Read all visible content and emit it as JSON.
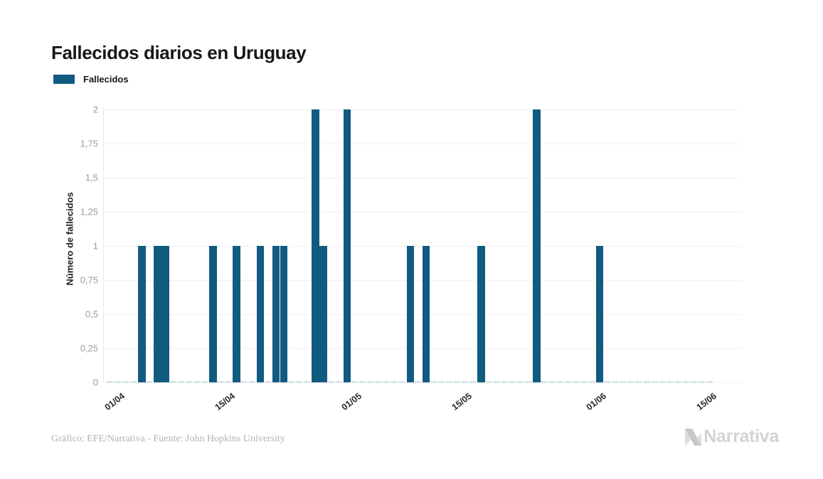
{
  "page": {
    "title": "Fallecidos diarios en Uruguay"
  },
  "legend": {
    "label": "Fallecidos"
  },
  "colors": {
    "bar": "#115b80",
    "title_text": "#17181a",
    "x_tick_text": "#26282b",
    "y_tick_text": "#9a9a9a",
    "gridline": "#f1f1f1",
    "axis_line": "#e8e8e8",
    "zero_day_dash": "#d9e4ea",
    "footer_text": "#b2b2b2",
    "logo_gray": "#d3d3d4"
  },
  "footer": {
    "credit": "Gráfico: EFE/Narrativa - Fuente: John Hopkins University",
    "brand": "Narrativa"
  },
  "chart_data": {
    "type": "bar",
    "title": "Fallecidos diarios en Uruguay",
    "series_name": "Fallecidos",
    "xlabel": "",
    "ylabel": "Número de fallecidos",
    "ylim": [
      0,
      2
    ],
    "grid": true,
    "legend_position": "top-left",
    "y_ticks": [
      {
        "value": 0,
        "label": "0"
      },
      {
        "value": 0.25,
        "label": "0,25"
      },
      {
        "value": 0.5,
        "label": "0,5"
      },
      {
        "value": 0.75,
        "label": "0,75"
      },
      {
        "value": 1,
        "label": "1"
      },
      {
        "value": 1.25,
        "label": "1,25"
      },
      {
        "value": 1.5,
        "label": "1,5"
      },
      {
        "value": 1.75,
        "label": "1,75"
      },
      {
        "value": 2,
        "label": "2"
      }
    ],
    "x_ticks": [
      {
        "day": 0,
        "label": "01/04"
      },
      {
        "day": 14,
        "label": "15/04"
      },
      {
        "day": 30,
        "label": "01/05"
      },
      {
        "day": 44,
        "label": "15/05"
      },
      {
        "day": 61,
        "label": "01/06"
      },
      {
        "day": 75,
        "label": "15/06"
      }
    ],
    "x_domain": {
      "start_label": "01/04",
      "end_label": "16/06",
      "days_total": 77
    },
    "unlisted_days_value": 0,
    "bars": [
      {
        "day": 4,
        "date": "05/04",
        "value": 1
      },
      {
        "day": 6,
        "date": "07/04",
        "value": 1
      },
      {
        "day": 7,
        "date": "08/04",
        "value": 1
      },
      {
        "day": 13,
        "date": "14/04",
        "value": 1
      },
      {
        "day": 16,
        "date": "17/04",
        "value": 1
      },
      {
        "day": 19,
        "date": "20/04",
        "value": 1
      },
      {
        "day": 21,
        "date": "22/04",
        "value": 1
      },
      {
        "day": 22,
        "date": "23/04",
        "value": 1
      },
      {
        "day": 26,
        "date": "27/04",
        "value": 2
      },
      {
        "day": 27,
        "date": "28/04",
        "value": 1
      },
      {
        "day": 30,
        "date": "01/05",
        "value": 2
      },
      {
        "day": 38,
        "date": "09/05",
        "value": 1
      },
      {
        "day": 40,
        "date": "11/05",
        "value": 1
      },
      {
        "day": 47,
        "date": "18/05",
        "value": 1
      },
      {
        "day": 54,
        "date": "25/05",
        "value": 2
      },
      {
        "day": 62,
        "date": "02/06",
        "value": 1
      }
    ]
  }
}
